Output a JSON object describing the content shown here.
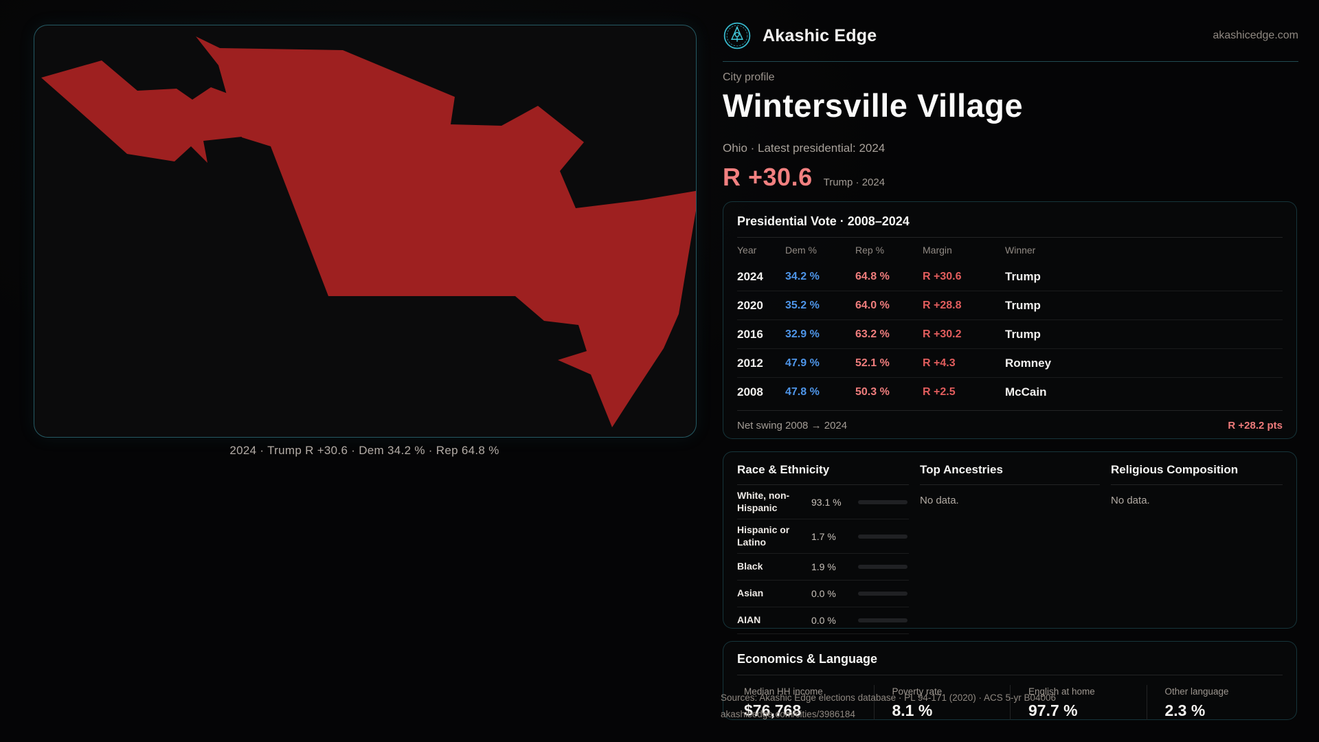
{
  "site": {
    "brand": "Akashic Edge",
    "domain": "akashicedge.com",
    "sources_line": "Sources: Akashic Edge elections database · PL 94-171 (2020) · ACS 5-yr B04006",
    "url_line": "akashicedge.com/cities/3986184"
  },
  "map": {
    "caption": "2024 · Trump R +30.6 · Dem 34.2 % · Rep 64.8 %",
    "shape_fill": "#9e2020",
    "panel_border": "#3da8ba"
  },
  "profile": {
    "kicker": "City profile",
    "title": "Wintersville Village",
    "subtitle": "Ohio · Latest presidential: 2024",
    "margin_big": "R +30.6",
    "margin_note": "Trump · 2024"
  },
  "vote_table": {
    "title": "Presidential Vote · 2008–2024",
    "columns": [
      "Year",
      "Dem %",
      "Rep %",
      "Margin",
      "Winner"
    ],
    "rows": [
      {
        "year": "2024",
        "dem": "34.2 %",
        "rep": "64.8 %",
        "margin": "R +30.6",
        "winner": "Trump"
      },
      {
        "year": "2020",
        "dem": "35.2 %",
        "rep": "64.0 %",
        "margin": "R +28.8",
        "winner": "Trump"
      },
      {
        "year": "2016",
        "dem": "32.9 %",
        "rep": "63.2 %",
        "margin": "R +30.2",
        "winner": "Trump"
      },
      {
        "year": "2012",
        "dem": "47.9 %",
        "rep": "52.1 %",
        "margin": "R +4.3",
        "winner": "Romney"
      },
      {
        "year": "2008",
        "dem": "47.8 %",
        "rep": "50.3 %",
        "margin": "R +2.5",
        "winner": "McCain"
      }
    ],
    "net_swing_label": "Net swing 2008 → 2024",
    "net_swing_value": "R +28.2 pts"
  },
  "race": {
    "title": "Race & Ethnicity",
    "rows": [
      {
        "label": "White, non-Hispanic",
        "value": "93.1 %",
        "pct": 93.1,
        "color": "#9fadc6"
      },
      {
        "label": "Hispanic or Latino",
        "value": "1.7 %",
        "pct": 1.7,
        "color": "#c5812c"
      },
      {
        "label": "Black",
        "value": "1.9 %",
        "pct": 1.9,
        "color": "#8f80e0"
      },
      {
        "label": "Asian",
        "value": "0.0 %",
        "pct": 0,
        "color": "#9fadc6"
      },
      {
        "label": "AIAN",
        "value": "0.0 %",
        "pct": 0,
        "color": "#9fadc6"
      }
    ]
  },
  "ancestries": {
    "title": "Top Ancestries",
    "empty": "No data."
  },
  "religion": {
    "title": "Religious Composition",
    "empty": "No data."
  },
  "economics": {
    "title": "Economics & Language",
    "stats": [
      {
        "label": "Median HH income",
        "value": "$76,768"
      },
      {
        "label": "Poverty rate",
        "value": "8.1 %"
      },
      {
        "label": "English at home",
        "value": "97.7 %"
      },
      {
        "label": "Other language",
        "value": "2.3 %"
      }
    ]
  },
  "colors": {
    "dem_blue": "#4e95e8",
    "rep_red": "#ef7d7d",
    "margin_red": "#e25d5d",
    "accent_teal": "#3da8ba",
    "map_red": "#9e2020"
  }
}
